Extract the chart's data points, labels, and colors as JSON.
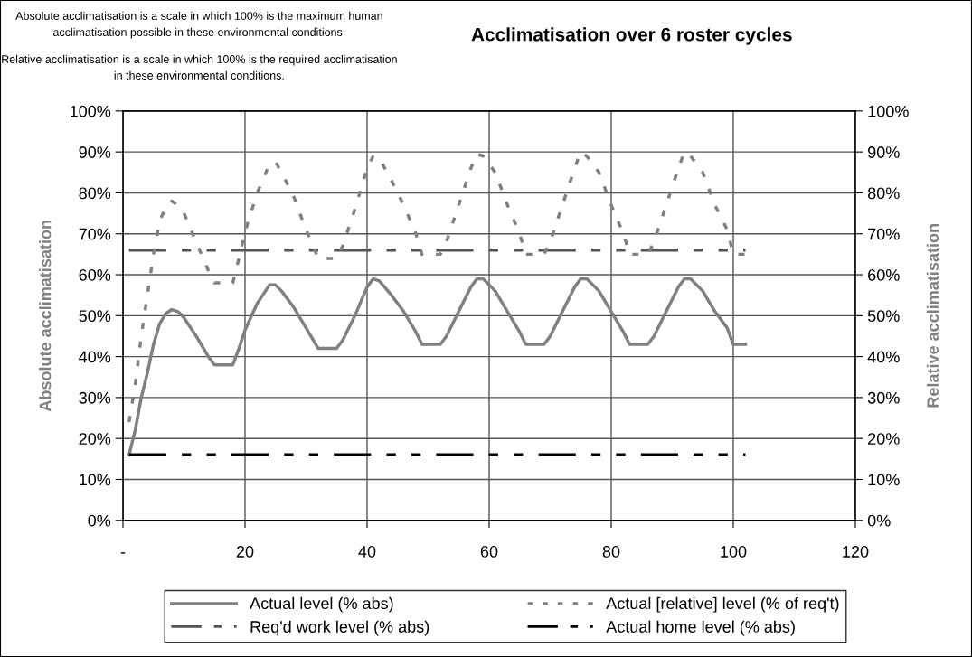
{
  "chart_data": {
    "type": "line",
    "title": "Acclimatisation over 6 roster cycles",
    "annotations": [
      "Absolute acclimatisation is a scale in which 100% is the maximum human acclimatisation possible in these environmental conditions.",
      "Relative acclimatisation is a scale in which 100% is the required acclimatisation in these environmental conditions."
    ],
    "ylabel": "Absolute acclimatisation",
    "y2label": "Relative acclimatisation",
    "xlim": [
      0,
      120
    ],
    "xticks": [
      {
        "value": 0,
        "label": "-"
      },
      20,
      40,
      60,
      80,
      100,
      120
    ],
    "ylim": [
      0,
      100
    ],
    "yticks": [
      {
        "value": 0,
        "label": "0%"
      },
      {
        "value": 10,
        "label": "10%"
      },
      {
        "value": 20,
        "label": "20%"
      },
      {
        "value": 30,
        "label": "30%"
      },
      {
        "value": 40,
        "label": "40%"
      },
      {
        "value": 50,
        "label": "50%"
      },
      {
        "value": 60,
        "label": "60%"
      },
      {
        "value": 70,
        "label": "70%"
      },
      {
        "value": 80,
        "label": "80%"
      },
      {
        "value": 90,
        "label": "90%"
      },
      {
        "value": 100,
        "label": "100%"
      }
    ],
    "y2lim": [
      0,
      100
    ],
    "y2ticks": [
      {
        "value": 0,
        "label": "0%"
      },
      {
        "value": 10,
        "label": "10%"
      },
      {
        "value": 20,
        "label": "20%"
      },
      {
        "value": 30,
        "label": "30%"
      },
      {
        "value": 40,
        "label": "40%"
      },
      {
        "value": 50,
        "label": "50%"
      },
      {
        "value": 60,
        "label": "60%"
      },
      {
        "value": 70,
        "label": "70%"
      },
      {
        "value": 80,
        "label": "80%"
      },
      {
        "value": 90,
        "label": "90%"
      },
      {
        "value": 100,
        "label": "100%"
      }
    ],
    "grid": true,
    "legend": "bottom",
    "marker": "none",
    "series": [
      {
        "name": "Actual level (% abs)",
        "color": "#808080",
        "line_style": "solid",
        "x": [
          1,
          2,
          3,
          4,
          5,
          6,
          7,
          8,
          9,
          10,
          12,
          14,
          15,
          18,
          19,
          20,
          22,
          24,
          25,
          26,
          28,
          30,
          32,
          35,
          36,
          38,
          40,
          41,
          42,
          44,
          46,
          48,
          49,
          52,
          53,
          55,
          57,
          58,
          59,
          61,
          63,
          65,
          66,
          69,
          70,
          72,
          74,
          75,
          76,
          78,
          80,
          82,
          83,
          86,
          87,
          89,
          91,
          92,
          93,
          95,
          97,
          99,
          100,
          102
        ],
        "values": [
          16,
          22,
          30,
          36,
          43,
          48,
          50.5,
          51.5,
          51,
          49.5,
          45,
          40,
          38,
          38,
          42,
          46.5,
          53,
          57.5,
          57.5,
          56,
          52,
          47,
          42,
          42,
          44,
          50,
          57,
          59,
          58.5,
          55,
          51,
          46,
          43,
          43,
          45,
          51,
          57,
          59,
          59,
          56,
          51,
          46,
          43,
          43,
          45,
          51,
          57,
          59,
          59,
          56,
          51,
          46,
          43,
          43,
          45,
          51,
          57,
          59,
          59,
          56,
          51,
          47,
          43,
          43
        ]
      },
      {
        "name": "Actual [relative] level (% of req't)",
        "color": "#808080",
        "line_style": "dotted",
        "axis": "y2",
        "x": [
          1,
          2,
          3,
          4,
          5,
          6,
          7,
          8,
          9,
          10,
          12,
          14,
          15,
          18,
          19,
          20,
          22,
          24,
          25,
          26,
          28,
          30,
          32,
          35,
          36,
          38,
          40,
          41,
          42,
          44,
          46,
          48,
          49,
          52,
          53,
          55,
          57,
          58,
          59,
          61,
          63,
          65,
          66,
          69,
          70,
          72,
          74,
          75,
          76,
          78,
          80,
          82,
          83,
          86,
          87,
          89,
          91,
          92,
          93,
          95,
          97,
          99,
          100,
          102
        ],
        "values": [
          24,
          33,
          45,
          55,
          65,
          73,
          76.5,
          78,
          77,
          75,
          68,
          61,
          58,
          58,
          64,
          70.5,
          80,
          87,
          87.5,
          85,
          79,
          71,
          64,
          64,
          67,
          76,
          86,
          89,
          88.5,
          83,
          77,
          70,
          65,
          65,
          68,
          77,
          86,
          89.5,
          89,
          85,
          77,
          70,
          65,
          65,
          68,
          77,
          86,
          90,
          89,
          85,
          77,
          70,
          65,
          65,
          68,
          77,
          86,
          90,
          89,
          85,
          77,
          71,
          65,
          65
        ]
      },
      {
        "name": "Req'd work level (% abs)",
        "color": "#555555",
        "line_style": "dashed",
        "x": [
          1,
          102
        ],
        "values": [
          66,
          66
        ]
      },
      {
        "name": "Actual home level (% abs)",
        "color": "#000000",
        "line_style": "dashed",
        "x": [
          1,
          102
        ],
        "values": [
          16,
          16
        ]
      }
    ]
  }
}
